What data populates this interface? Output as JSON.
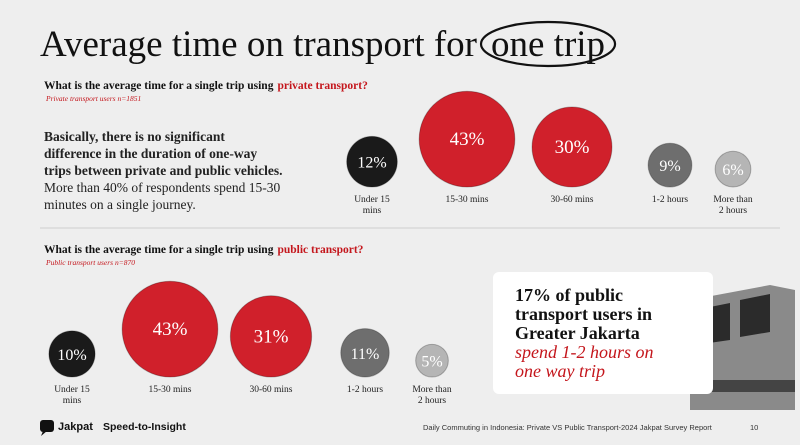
{
  "title": "Average time on transport for",
  "title_circled": "one trip",
  "description": {
    "bold": "Basically, there is no significant difference in the duration of one-way trips between private and public vehicles.",
    "regular": "More than 40% of respondents spend 15-30 minutes on a single journey."
  },
  "callout": {
    "heading": "17% of public transport users in Greater Jakarta",
    "emphasis": "spend 1-2 hours on one way trip"
  },
  "footer": {
    "brand": "Jakpat",
    "tagline": "Speed-to-Insight",
    "report": "Daily Commuting in Indonesia: Private VS Public Transport-2024 Jakpat Survey Report",
    "page": "10"
  },
  "chart_data": [
    {
      "type": "bubble",
      "question": "What is the average time for a single trip using",
      "question_highlight": "private transport?",
      "subtitle": "Private transport users n=1851",
      "categories": [
        "Under 15 mins",
        "15-30 mins",
        "30-60 mins",
        "1-2 hours",
        "More than 2 hours"
      ],
      "values": [
        12,
        43,
        30,
        9,
        6
      ],
      "value_labels": [
        "12%",
        "43%",
        "30%",
        "9%",
        "6%"
      ],
      "colors": [
        "#1a1a1a",
        "#d0202b",
        "#d0202b",
        "#6e6e6e",
        "#b5b5b5"
      ]
    },
    {
      "type": "bubble",
      "question": "What is the average time for a single trip using",
      "question_highlight": "public transport?",
      "subtitle": "Public transport users n=870",
      "categories": [
        "Under 15 mins",
        "15-30 mins",
        "30-60 mins",
        "1-2 hours",
        "More than 2 hours"
      ],
      "values": [
        10,
        43,
        31,
        11,
        5
      ],
      "value_labels": [
        "10%",
        "43%",
        "31%",
        "11%",
        "5%"
      ],
      "colors": [
        "#1a1a1a",
        "#d0202b",
        "#d0202b",
        "#6e6e6e",
        "#b5b5b5"
      ]
    }
  ]
}
